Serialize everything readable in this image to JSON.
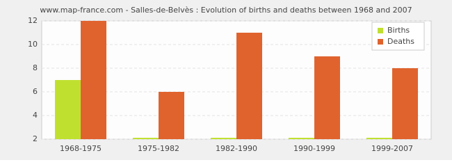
{
  "chart_data": {
    "type": "bar",
    "title": "www.map-france.com - Salles-de-Belvès : Evolution of births and deaths between 1968 and 2007",
    "categories": [
      "1968-1975",
      "1975-1982",
      "1982-1990",
      "1990-1999",
      "1999-2007"
    ],
    "series": [
      {
        "name": "Births",
        "color": "#c0e030",
        "values": [
          7,
          2,
          2,
          2,
          2
        ]
      },
      {
        "name": "Deaths",
        "color": "#e0632e",
        "values": [
          12,
          6,
          11,
          9,
          8
        ]
      }
    ],
    "ylim": [
      2,
      12
    ],
    "yticks": [
      2,
      4,
      6,
      8,
      10,
      12
    ],
    "grid": true,
    "legend": "top-right"
  }
}
